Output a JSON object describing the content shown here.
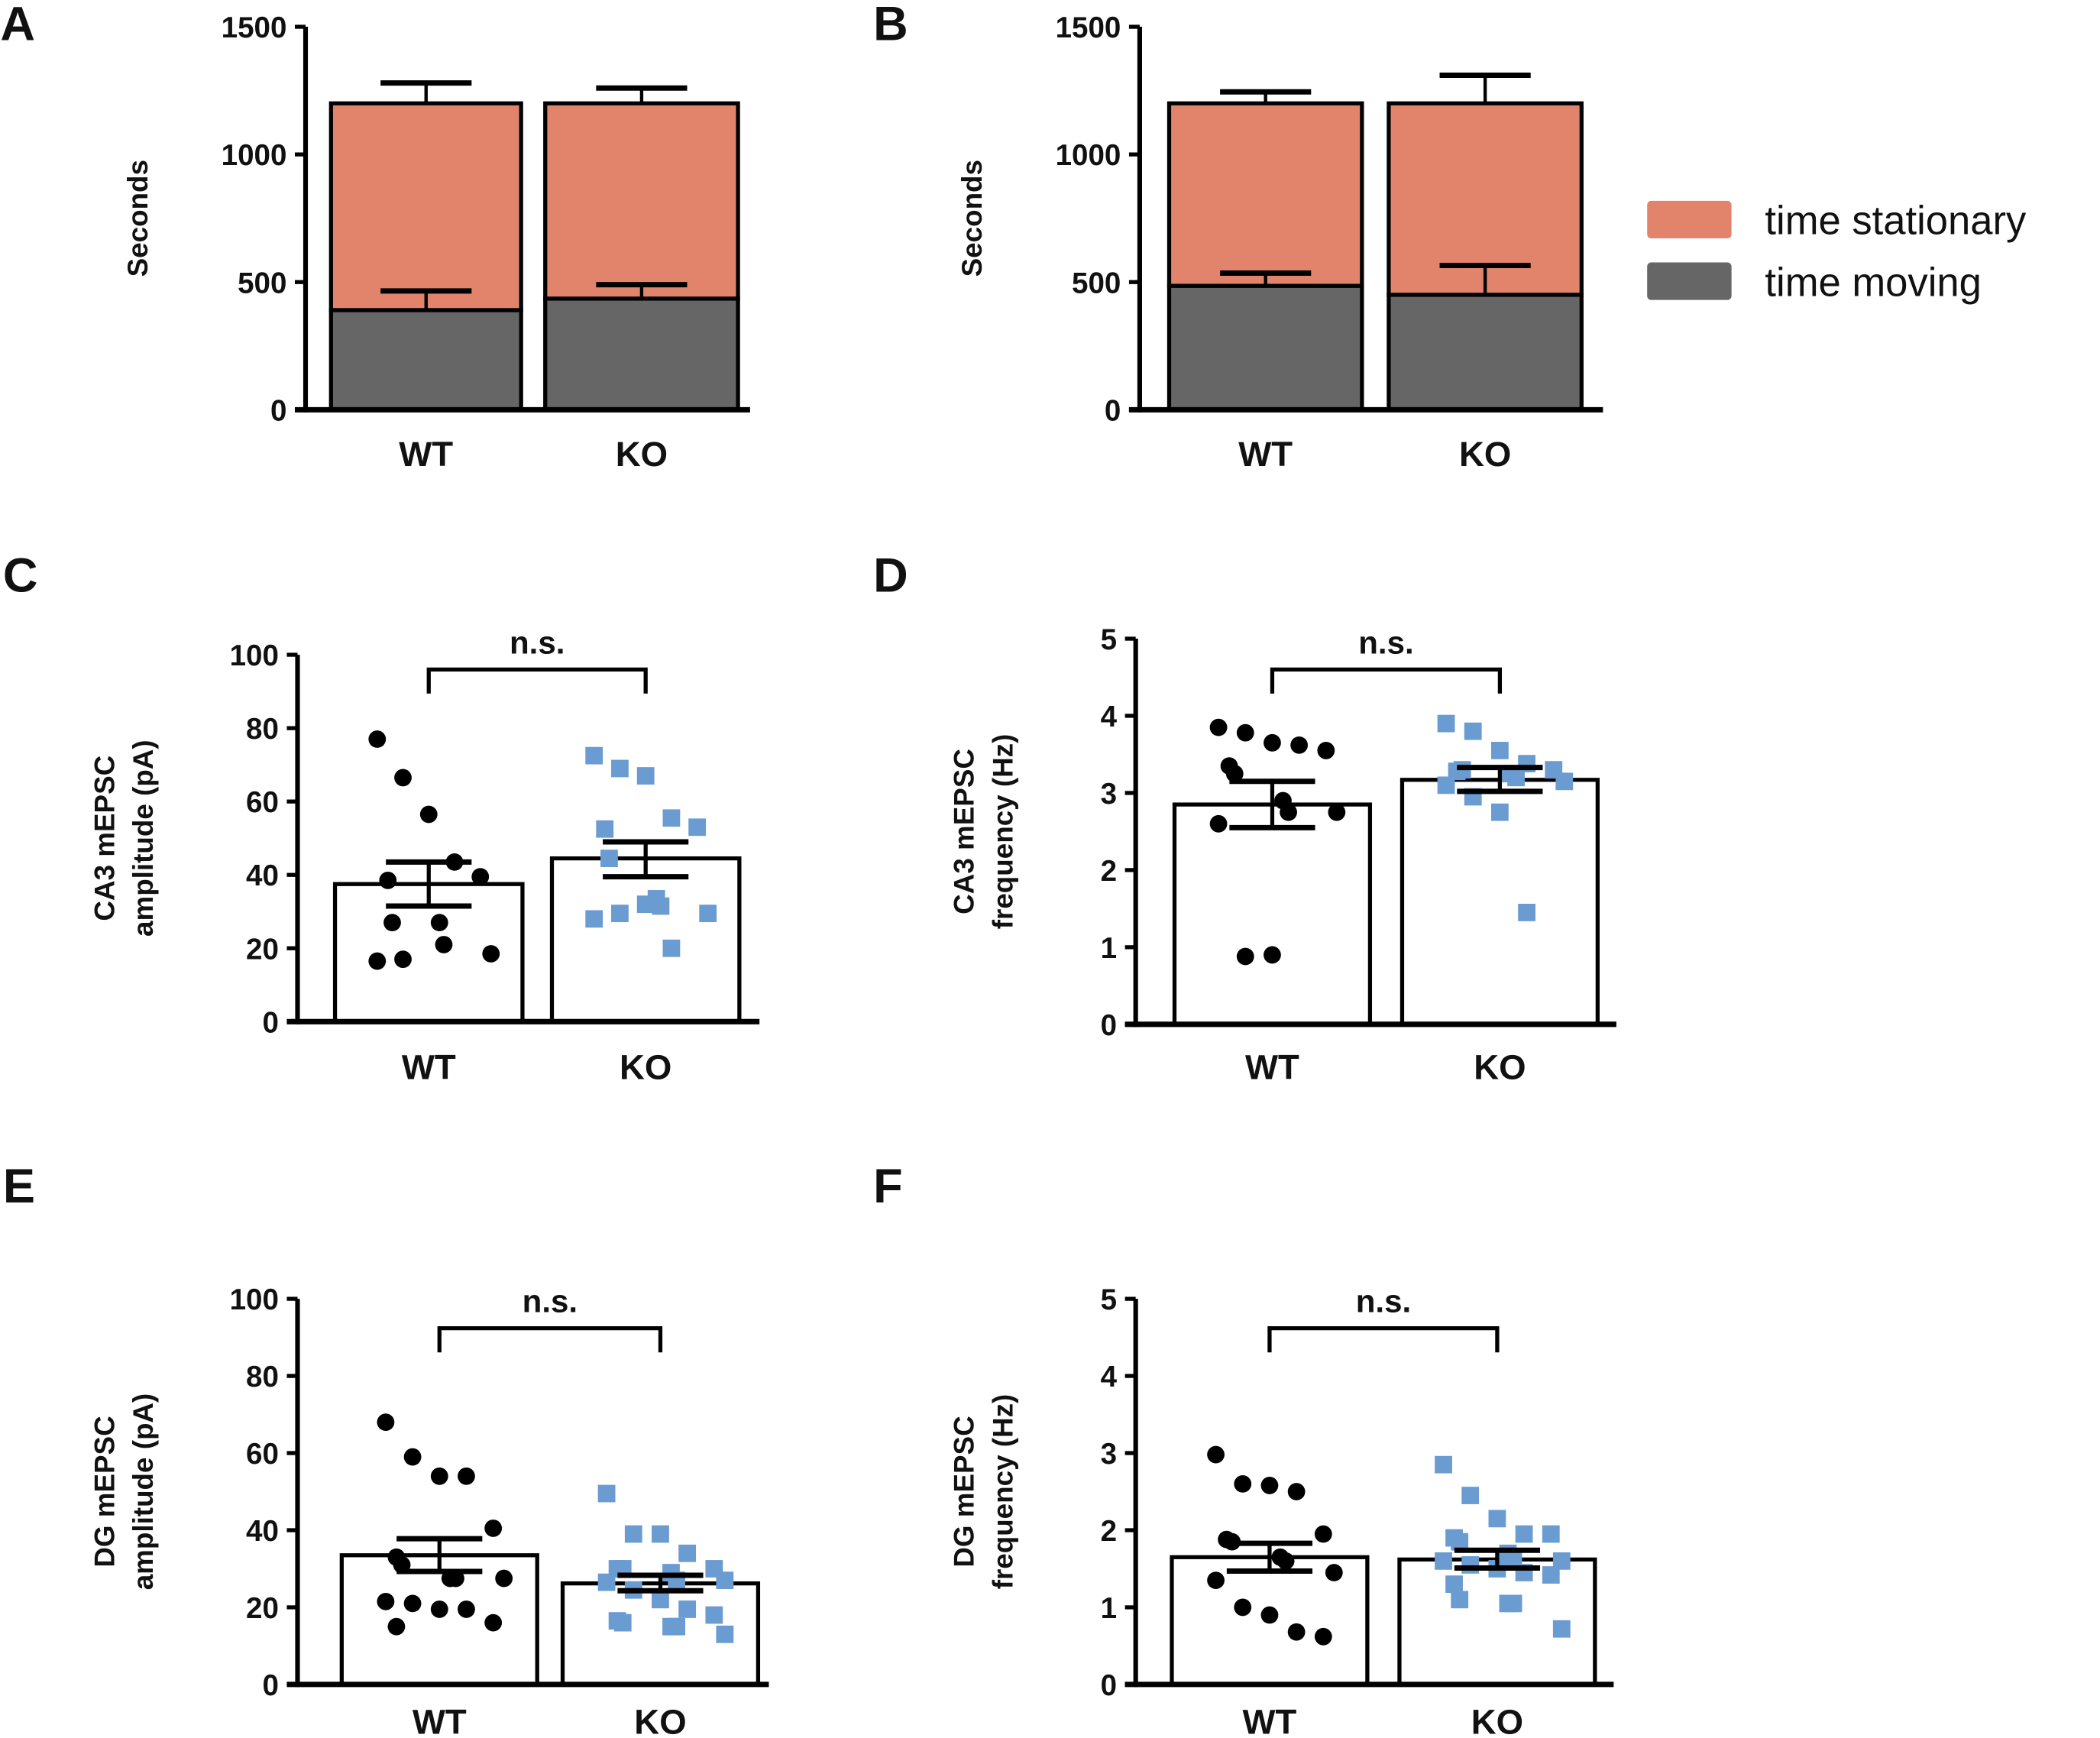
{
  "colors": {
    "stationary": "#E2836C",
    "moving": "#666666",
    "ko_points": "#6A9BD1",
    "wt_points": "#000000",
    "axis": "#000000"
  },
  "legend": {
    "items": [
      {
        "label": "time stationary",
        "color": "#E2836C"
      },
      {
        "label": "time moving",
        "color": "#666666"
      }
    ]
  },
  "chart_data": [
    {
      "panel": "A",
      "type": "bar",
      "stacked": true,
      "categories": [
        "WT",
        "KO"
      ],
      "ylabel": "Seconds",
      "ylim": [
        0,
        1500
      ],
      "yticks": [
        0,
        500,
        1000,
        1500
      ],
      "series": [
        {
          "name": "time moving",
          "values": [
            390,
            435
          ],
          "error_top": [
            465,
            490
          ]
        },
        {
          "name": "time stationary",
          "values": [
            810,
            765
          ],
          "total": [
            1200,
            1200
          ],
          "error_top": [
            1280,
            1260
          ]
        }
      ]
    },
    {
      "panel": "B",
      "type": "bar",
      "stacked": true,
      "categories": [
        "WT",
        "KO"
      ],
      "ylabel": "Seconds",
      "ylim": [
        0,
        1500
      ],
      "yticks": [
        0,
        500,
        1000,
        1500
      ],
      "series": [
        {
          "name": "time moving",
          "values": [
            485,
            450
          ],
          "error_top": [
            535,
            565
          ]
        },
        {
          "name": "time stationary",
          "values": [
            715,
            750
          ],
          "total": [
            1200,
            1200
          ],
          "error_top": [
            1245,
            1310
          ]
        }
      ]
    },
    {
      "panel": "C",
      "type": "bar",
      "categories": [
        "WT",
        "KO"
      ],
      "ylabel": [
        "CA3 mEPSC",
        "amplitude (pA)"
      ],
      "ylim": [
        0,
        100
      ],
      "yticks": [
        0,
        20,
        40,
        60,
        80,
        100
      ],
      "annotation": "n.s.",
      "means": [
        37.5,
        44.5
      ],
      "sem_low": [
        31.5,
        39.5
      ],
      "sem_high": [
        43.5,
        49
      ],
      "points": [
        [
          77,
          66.5,
          56.5,
          43.5,
          39.5,
          38.5,
          27,
          27,
          21,
          18.5,
          16.5,
          17
        ],
        [
          72.5,
          69,
          67,
          55.5,
          53,
          52.5,
          44.5,
          33.5,
          31.5,
          29.5,
          28,
          29.5,
          32,
          20
        ]
      ]
    },
    {
      "panel": "D",
      "type": "bar",
      "categories": [
        "WT",
        "KO"
      ],
      "ylabel": [
        "CA3 mEPSC",
        "frequency (Hz)"
      ],
      "ylim": [
        0,
        5
      ],
      "yticks": [
        0,
        1,
        2,
        3,
        4,
        5
      ],
      "annotation": "n.s.",
      "means": [
        2.85,
        3.17
      ],
      "sem_low": [
        2.55,
        3.02
      ],
      "sem_high": [
        3.15,
        3.33
      ],
      "points": [
        [
          3.85,
          3.78,
          3.65,
          3.62,
          3.55,
          3.35,
          3.25,
          2.9,
          2.75,
          2.75,
          2.6,
          0.88,
          0.9
        ],
        [
          3.9,
          3.8,
          3.55,
          3.38,
          3.3,
          3.28,
          3.3,
          3.25,
          3.2,
          3.15,
          3.1,
          2.95,
          2.75,
          1.45
        ]
      ]
    },
    {
      "panel": "E",
      "type": "bar",
      "categories": [
        "WT",
        "KO"
      ],
      "ylabel": [
        "DG mEPSC",
        "amplitude (pA)"
      ],
      "ylim": [
        0,
        100
      ],
      "yticks": [
        0,
        20,
        40,
        60,
        80,
        100
      ],
      "annotation": "n.s.",
      "means": [
        33.5,
        26.2
      ],
      "sem_low": [
        29.3,
        24.3
      ],
      "sem_high": [
        37.8,
        28.3
      ],
      "points": [
        [
          68,
          59,
          54,
          54,
          40.5,
          33,
          31,
          27.5,
          27.5,
          27.5,
          21.5,
          21,
          19.5,
          19.5,
          16,
          15
        ],
        [
          49.5,
          39,
          39,
          34,
          30,
          30,
          30,
          29,
          27,
          27,
          26.5,
          24.5,
          22,
          19.5,
          18,
          16.5,
          16,
          15,
          15,
          13
        ]
      ]
    },
    {
      "panel": "F",
      "type": "bar",
      "categories": [
        "WT",
        "KO"
      ],
      "ylabel": [
        "DG mEPSC",
        "frequency (Hz)"
      ],
      "ylim": [
        0,
        5
      ],
      "yticks": [
        0,
        1,
        2,
        3,
        4,
        5
      ],
      "annotation": "n.s.",
      "means": [
        1.65,
        1.62
      ],
      "sem_low": [
        1.47,
        1.51
      ],
      "sem_high": [
        1.83,
        1.74
      ],
      "points": [
        [
          2.98,
          2.6,
          2.58,
          2.5,
          1.95,
          1.88,
          1.85,
          1.65,
          1.6,
          1.45,
          1.35,
          1.0,
          0.9,
          0.68,
          0.62
        ],
        [
          2.85,
          2.45,
          2.15,
          1.95,
          1.95,
          1.9,
          1.85,
          1.7,
          1.65,
          1.6,
          1.6,
          1.55,
          1.5,
          1.45,
          1.42,
          1.3,
          1.1,
          1.05,
          1.05,
          0.72
        ]
      ]
    }
  ]
}
